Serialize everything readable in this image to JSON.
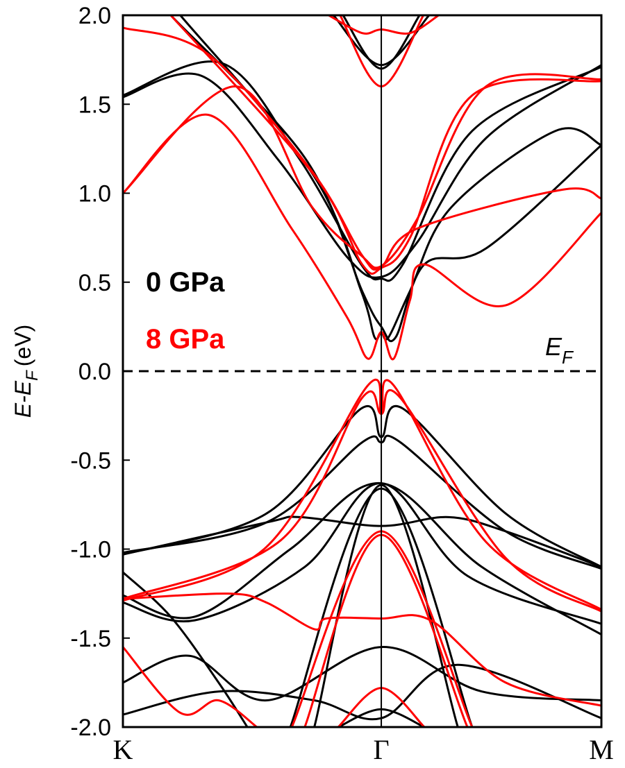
{
  "chart_data": {
    "type": "line",
    "ylabel": {
      "main": "E-E",
      "sub": "F",
      "rest": "(eV)"
    },
    "ylim": [
      -2.0,
      2.0
    ],
    "yticks": [
      "-2.0",
      "-1.5",
      "-1.0",
      "-0.5",
      "0.0",
      "0.5",
      "1.0",
      "1.5",
      "2.0"
    ],
    "ytick_values": [
      -2.0,
      -1.5,
      -1.0,
      -0.5,
      0.0,
      0.5,
      1.0,
      1.5,
      2.0
    ],
    "xlim": [
      0,
      1
    ],
    "xticks": [
      {
        "label": "K",
        "k": 0
      },
      {
        "label": "Γ",
        "k": 0.54
      },
      {
        "label": "M",
        "k": 1
      }
    ],
    "fermi_label": {
      "main": "E",
      "sub": "F"
    },
    "fermi_level": 0.0,
    "grid": false,
    "legend_position": "left-middle",
    "series": [
      {
        "name": "0 GPa",
        "color": "#000000",
        "bands": [
          [
            [
              0,
              1.54
            ],
            [
              0.164,
              1.66
            ],
            [
              0.324,
              1.19
            ],
            [
              0.469,
              0.64
            ],
            [
              0.54,
              0.53
            ],
            [
              0.614,
              0.72
            ],
            [
              0.759,
              1.31
            ],
            [
              1,
              1.72
            ]
          ],
          [
            [
              0,
              1.55
            ],
            [
              0.208,
              1.73
            ],
            [
              0.367,
              1.2
            ],
            [
              0.498,
              0.6
            ],
            [
              0.54,
              0.52
            ],
            [
              0.585,
              0.6
            ],
            [
              0.73,
              1.35
            ],
            [
              1,
              1.71
            ]
          ],
          [
            [
              0.12,
              2.0
            ],
            [
              0.396,
              1.11
            ],
            [
              0.498,
              0.45
            ],
            [
              0.526,
              0.19
            ],
            [
              0.54,
              0.22
            ],
            [
              0.555,
              0.19
            ],
            [
              0.6,
              0.45
            ],
            [
              0.686,
              0.92
            ],
            [
              0.904,
              1.35
            ],
            [
              1,
              1.27
            ]
          ],
          [
            [
              0.1,
              2.0
            ],
            [
              0.38,
              1.2
            ],
            [
              0.5,
              0.45
            ],
            [
              0.54,
              0.25
            ],
            [
              0.57,
              0.19
            ],
            [
              0.63,
              0.6
            ],
            [
              0.759,
              0.69
            ],
            [
              1,
              1.27
            ]
          ],
          [
            [
              0.44,
              2.0
            ],
            [
              0.54,
              1.72
            ],
            [
              0.64,
              2.0
            ]
          ],
          [
            [
              0.46,
              2.0
            ],
            [
              0.54,
              1.7
            ],
            [
              0.62,
              2.0
            ]
          ],
          [
            [
              0,
              -1.03
            ],
            [
              0.3,
              -0.8
            ],
            [
              0.498,
              -0.21
            ],
            [
              0.54,
              -0.37
            ],
            [
              0.585,
              -0.21
            ],
            [
              0.8,
              -0.8
            ],
            [
              1,
              -1.1
            ]
          ],
          [
            [
              0,
              -1.02
            ],
            [
              0.3,
              -0.85
            ],
            [
              0.5,
              -0.4
            ],
            [
              0.54,
              -0.4
            ],
            [
              0.58,
              -0.4
            ],
            [
              0.8,
              -0.9
            ],
            [
              1,
              -1.11
            ]
          ],
          [
            [
              0,
              -1.26
            ],
            [
              0.15,
              -1.38
            ],
            [
              0.35,
              -1.0
            ],
            [
              0.54,
              -0.63
            ],
            [
              0.75,
              -1.1
            ],
            [
              1,
              -1.48
            ]
          ],
          [
            [
              0,
              -1.3
            ],
            [
              0.15,
              -1.4
            ],
            [
              0.38,
              -1.1
            ],
            [
              0.54,
              -0.63
            ],
            [
              0.72,
              -1.15
            ],
            [
              1,
              -1.42
            ]
          ],
          [
            [
              0,
              -1.03
            ],
            [
              0.3,
              -0.85
            ],
            [
              0.37,
              -0.82
            ],
            [
              0.54,
              -0.87
            ],
            [
              0.68,
              -0.82
            ],
            [
              0.8,
              -0.9
            ],
            [
              1,
              -1.1
            ]
          ],
          [
            [
              0.35,
              -2.0
            ],
            [
              0.54,
              -0.66
            ],
            [
              0.73,
              -2.0
            ]
          ],
          [
            [
              0.4,
              -2.0
            ],
            [
              0.54,
              -0.64
            ],
            [
              0.7,
              -2.0
            ]
          ],
          [
            [
              0,
              -1.75
            ],
            [
              0.14,
              -1.6
            ],
            [
              0.3,
              -1.85
            ],
            [
              0.54,
              -1.55
            ],
            [
              0.75,
              -1.8
            ],
            [
              1,
              -1.85
            ]
          ],
          [
            [
              0,
              -1.93
            ],
            [
              0.2,
              -1.8
            ],
            [
              0.4,
              -1.85
            ],
            [
              0.54,
              -1.95
            ],
            [
              0.7,
              -1.65
            ],
            [
              1,
              -1.95
            ]
          ],
          [
            [
              0,
              -1.13
            ],
            [
              0.1,
              -1.38
            ],
            [
              0.2,
              -1.75
            ],
            [
              0.26,
              -2.0
            ]
          ],
          [
            [
              0.45,
              -2.0
            ],
            [
              0.54,
              -1.9
            ],
            [
              0.63,
              -2.0
            ]
          ]
        ]
      },
      {
        "name": "8 GPa",
        "color": "#ff0000",
        "bands": [
          [
            [
              0,
              1.0
            ],
            [
              0.179,
              1.44
            ],
            [
              0.353,
              0.8
            ],
            [
              0.469,
              0.3
            ],
            [
              0.512,
              0.07
            ],
            [
              0.54,
              0.22
            ],
            [
              0.566,
              0.07
            ],
            [
              0.6,
              0.4
            ],
            [
              0.63,
              0.6
            ],
            [
              0.8,
              0.37
            ],
            [
              1,
              0.89
            ]
          ],
          [
            [
              0,
              1.0
            ],
            [
              0.237,
              1.6
            ],
            [
              0.396,
              0.92
            ],
            [
              0.498,
              0.65
            ],
            [
              0.54,
              0.59
            ],
            [
              0.614,
              0.8
            ],
            [
              0.919,
              1.02
            ],
            [
              1,
              0.97
            ]
          ],
          [
            [
              0,
              1.93
            ],
            [
              0.179,
              1.78
            ],
            [
              0.396,
              1.12
            ],
            [
              0.5,
              0.65
            ],
            [
              0.54,
              0.59
            ],
            [
              0.614,
              0.85
            ],
            [
              0.759,
              1.6
            ],
            [
              1,
              1.64
            ]
          ],
          [
            [
              0.1,
              2.0
            ],
            [
              0.4,
              1.1
            ],
            [
              0.5,
              0.6
            ],
            [
              0.54,
              0.58
            ],
            [
              0.6,
              0.75
            ],
            [
              0.73,
              1.55
            ],
            [
              1,
              1.63
            ]
          ],
          [
            [
              0.454,
              2.0
            ],
            [
              0.54,
              1.6
            ],
            [
              0.628,
              2.0
            ]
          ],
          [
            [
              0.43,
              2.0
            ],
            [
              0.5,
              1.9
            ],
            [
              0.54,
              1.92
            ],
            [
              0.6,
              1.9
            ],
            [
              0.66,
              2.0
            ]
          ],
          [
            [
              0,
              -1.29
            ],
            [
              0.295,
              -1.0
            ],
            [
              0.512,
              -0.08
            ],
            [
              0.54,
              -0.24
            ],
            [
              0.566,
              -0.08
            ],
            [
              0.759,
              -0.96
            ],
            [
              1,
              -1.34
            ]
          ],
          [
            [
              0,
              -1.28
            ],
            [
              0.33,
              -0.95
            ],
            [
              0.5,
              -0.15
            ],
            [
              0.54,
              -0.24
            ],
            [
              0.58,
              -0.15
            ],
            [
              0.8,
              -1.05
            ],
            [
              1,
              -1.35
            ]
          ],
          [
            [
              0.353,
              -2.0
            ],
            [
              0.54,
              -0.9
            ],
            [
              0.73,
              -2.0
            ]
          ],
          [
            [
              0.38,
              -2.0
            ],
            [
              0.54,
              -0.92
            ],
            [
              0.72,
              -2.0
            ]
          ],
          [
            [
              0,
              -1.28
            ],
            [
              0.22,
              -1.25
            ],
            [
              0.3,
              -1.3
            ],
            [
              0.4,
              -1.45
            ],
            [
              0.425,
              -1.39
            ],
            [
              0.54,
              -1.39
            ],
            [
              0.643,
              -1.4
            ],
            [
              0.8,
              -1.75
            ],
            [
              1,
              -1.88
            ]
          ],
          [
            [
              0,
              -1.55
            ],
            [
              0.12,
              -1.92
            ],
            [
              0.2,
              -1.85
            ],
            [
              0.28,
              -2.0
            ]
          ],
          [
            [
              0.45,
              -2.0
            ],
            [
              0.54,
              -1.78
            ],
            [
              0.63,
              -2.0
            ]
          ]
        ]
      }
    ]
  }
}
